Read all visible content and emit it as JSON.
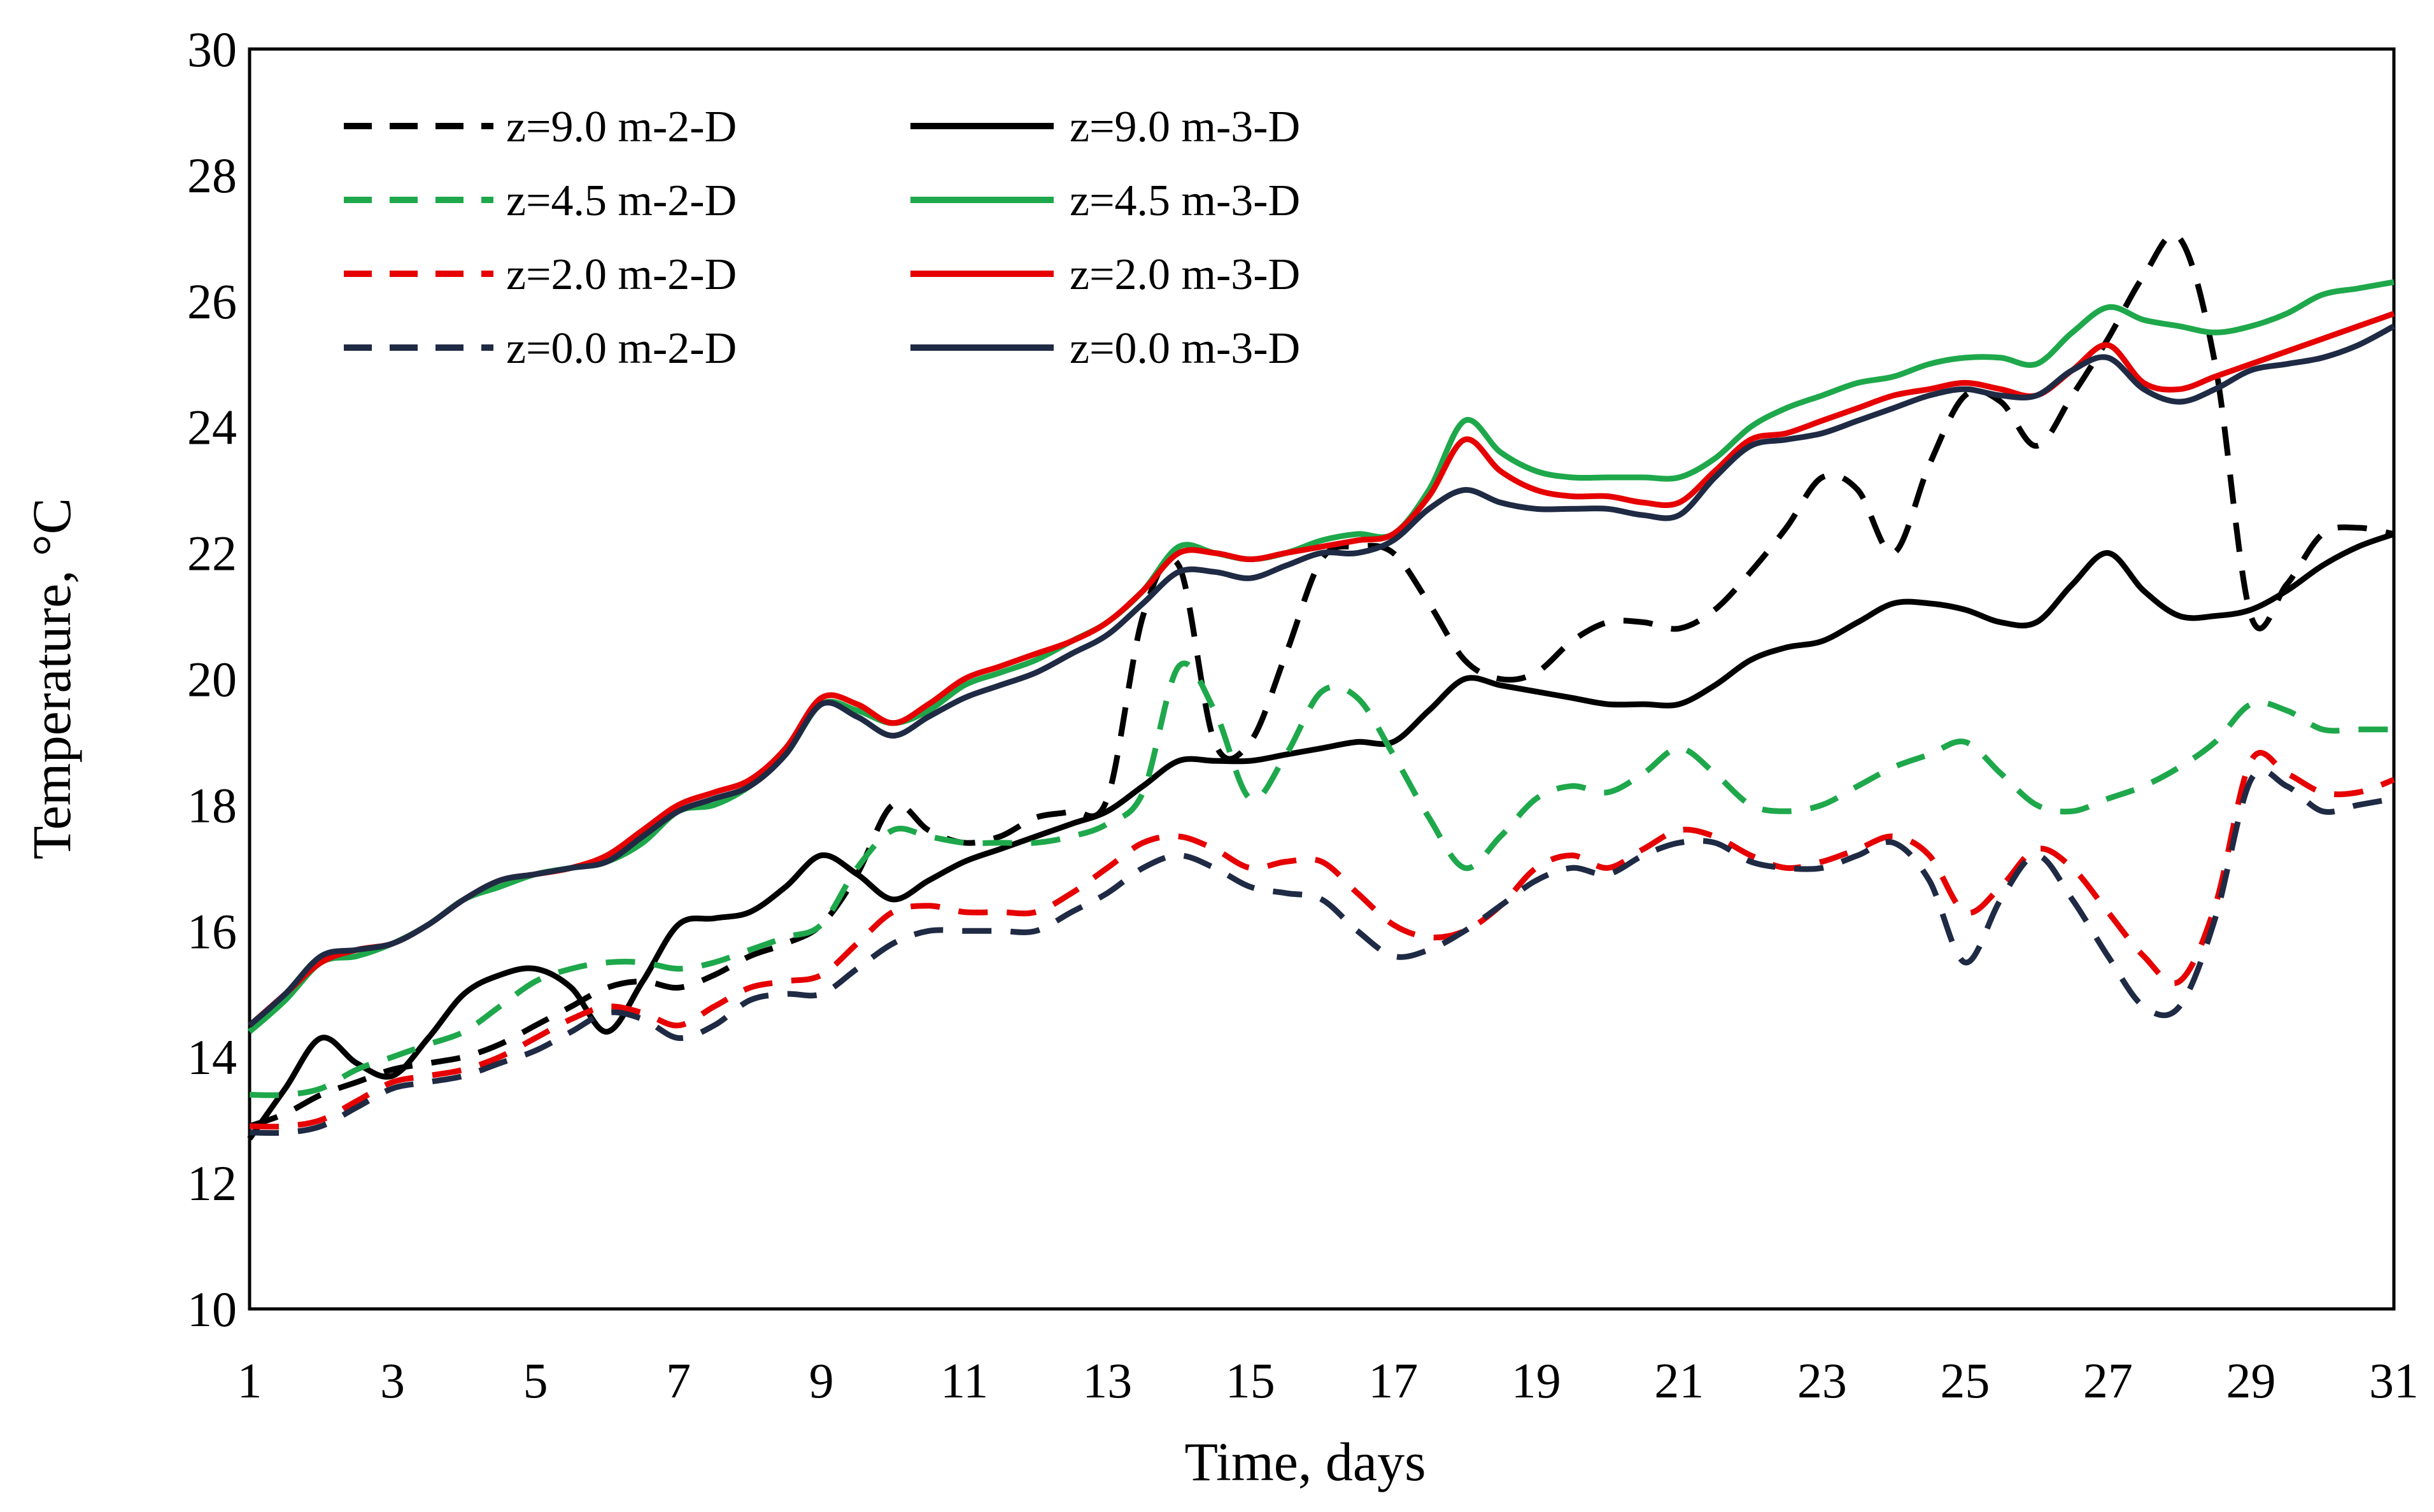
{
  "chart_data": {
    "type": "line",
    "title": "",
    "xlabel": "Time, days",
    "ylabel": "Temperature, °C",
    "xlim": [
      1,
      31
    ],
    "ylim": [
      10,
      30
    ],
    "xticks": [
      "1",
      "3",
      "5",
      "7",
      "9",
      "11",
      "13",
      "15",
      "17",
      "19",
      "21",
      "23",
      "25",
      "27",
      "29",
      "31"
    ],
    "yticks": [
      "10",
      "12",
      "14",
      "16",
      "18",
      "20",
      "22",
      "24",
      "26",
      "28",
      "30"
    ],
    "grid": false,
    "legend_position": "top-left",
    "x": [
      1,
      1.5,
      2,
      2.5,
      3,
      3.5,
      4,
      4.5,
      5,
      5.5,
      6,
      6.5,
      7,
      7.5,
      8,
      8.5,
      9,
      9.5,
      10,
      10.5,
      11,
      11.5,
      12,
      12.5,
      13,
      13.5,
      14,
      14.5,
      15,
      15.5,
      16,
      16.5,
      17,
      17.5,
      18,
      18.5,
      19,
      19.5,
      20,
      20.5,
      21,
      21.5,
      22,
      22.5,
      23,
      23.5,
      24,
      24.5,
      25,
      25.5,
      26,
      26.5,
      27,
      27.5,
      28,
      28.5,
      29,
      29.5,
      30,
      30.5,
      31
    ],
    "series": [
      {
        "name": "z=9.0 m-2-D",
        "color": "#000000",
        "dash": true,
        "values": [
          12.9,
          13.1,
          13.4,
          13.6,
          13.8,
          13.9,
          14.0,
          14.2,
          14.5,
          14.8,
          15.1,
          15.2,
          15.1,
          15.3,
          15.6,
          15.8,
          16.1,
          16.9,
          18.0,
          17.6,
          17.4,
          17.5,
          17.8,
          17.9,
          18.1,
          21.0,
          21.8,
          19.0,
          19.0,
          20.4,
          21.9,
          22.1,
          22.0,
          21.2,
          20.3,
          20.0,
          20.1,
          20.6,
          20.9,
          20.9,
          20.8,
          21.1,
          21.7,
          22.4,
          23.2,
          23.0,
          22.0,
          23.4,
          24.5,
          24.4,
          23.7,
          24.5,
          25.4,
          26.4,
          27.0,
          25.0,
          21.0,
          21.5,
          22.3,
          22.4,
          22.3
        ]
      },
      {
        "name": "z=9.0 m-3-D",
        "color": "#000000",
        "dash": false,
        "values": [
          12.7,
          13.5,
          14.3,
          13.9,
          13.7,
          14.3,
          15.0,
          15.3,
          15.4,
          15.1,
          14.4,
          15.2,
          16.1,
          16.2,
          16.3,
          16.7,
          17.2,
          16.9,
          16.5,
          16.8,
          17.1,
          17.3,
          17.5,
          17.7,
          17.9,
          18.3,
          18.7,
          18.7,
          18.7,
          18.8,
          18.9,
          19.0,
          19.0,
          19.5,
          20.0,
          19.9,
          19.8,
          19.7,
          19.6,
          19.6,
          19.6,
          19.9,
          20.3,
          20.5,
          20.6,
          20.9,
          21.2,
          21.2,
          21.1,
          20.9,
          20.9,
          21.5,
          22.0,
          21.4,
          21.0,
          21.0,
          21.1,
          21.4,
          21.8,
          22.1,
          22.3
        ]
      },
      {
        "name": "z=4.5 m-2-D",
        "color": "#1ea84b",
        "dash": true,
        "values": [
          13.4,
          13.4,
          13.5,
          13.8,
          14.0,
          14.2,
          14.4,
          14.8,
          15.2,
          15.4,
          15.5,
          15.5,
          15.4,
          15.5,
          15.7,
          15.9,
          16.1,
          17.0,
          17.6,
          17.5,
          17.4,
          17.4,
          17.4,
          17.5,
          17.7,
          18.2,
          20.2,
          19.5,
          18.1,
          18.8,
          19.8,
          19.7,
          18.8,
          17.8,
          17.0,
          17.5,
          18.1,
          18.3,
          18.2,
          18.5,
          18.9,
          18.5,
          18.0,
          17.9,
          18.0,
          18.3,
          18.6,
          18.8,
          19.0,
          18.5,
          18.0,
          17.9,
          18.1,
          18.3,
          18.6,
          19.0,
          19.6,
          19.5,
          19.2,
          19.2,
          19.2
        ]
      },
      {
        "name": "z=4.5 m-3-D",
        "color": "#1ea84b",
        "dash": false,
        "values": [
          14.4,
          14.9,
          15.5,
          15.6,
          15.8,
          16.1,
          16.5,
          16.7,
          16.9,
          17.0,
          17.1,
          17.4,
          17.9,
          18.0,
          18.3,
          18.8,
          19.6,
          19.5,
          19.3,
          19.5,
          19.9,
          20.1,
          20.3,
          20.6,
          20.9,
          21.4,
          22.1,
          22.0,
          21.9,
          22.0,
          22.2,
          22.3,
          22.3,
          23.0,
          24.1,
          23.6,
          23.3,
          23.2,
          23.2,
          23.2,
          23.2,
          23.5,
          24.0,
          24.3,
          24.5,
          24.7,
          24.8,
          25.0,
          25.1,
          25.1,
          25.0,
          25.5,
          25.9,
          25.7,
          25.6,
          25.5,
          25.6,
          25.8,
          26.1,
          26.2,
          26.3
        ]
      },
      {
        "name": "z=2.0 m-2-D",
        "color": "#e60000",
        "dash": true,
        "values": [
          12.9,
          12.9,
          13.0,
          13.3,
          13.6,
          13.7,
          13.8,
          14.0,
          14.3,
          14.6,
          14.8,
          14.7,
          14.5,
          14.8,
          15.1,
          15.2,
          15.3,
          15.8,
          16.3,
          16.4,
          16.3,
          16.3,
          16.3,
          16.6,
          17.0,
          17.4,
          17.5,
          17.3,
          17.0,
          17.1,
          17.1,
          16.6,
          16.1,
          15.9,
          16.0,
          16.4,
          17.0,
          17.2,
          17.0,
          17.3,
          17.6,
          17.5,
          17.2,
          17.0,
          17.1,
          17.3,
          17.5,
          17.2,
          16.3,
          16.7,
          17.3,
          17.0,
          16.3,
          15.6,
          15.2,
          16.4,
          18.7,
          18.5,
          18.2,
          18.2,
          18.4
        ]
      },
      {
        "name": "z=2.0 m-3-D",
        "color": "#e60000",
        "dash": false,
        "values": [
          14.5,
          15.0,
          15.5,
          15.7,
          15.8,
          16.1,
          16.5,
          16.8,
          16.9,
          17.0,
          17.2,
          17.6,
          18.0,
          18.2,
          18.4,
          18.9,
          19.7,
          19.6,
          19.3,
          19.6,
          20.0,
          20.2,
          20.4,
          20.6,
          20.9,
          21.4,
          22.0,
          22.0,
          21.9,
          22.0,
          22.1,
          22.2,
          22.3,
          22.9,
          23.8,
          23.3,
          23.0,
          22.9,
          22.9,
          22.8,
          22.8,
          23.3,
          23.8,
          23.9,
          24.1,
          24.3,
          24.5,
          24.6,
          24.7,
          24.6,
          24.5,
          24.9,
          25.3,
          24.7,
          24.6,
          24.8,
          25.0,
          25.2,
          25.4,
          25.6,
          25.8
        ]
      },
      {
        "name": "z=0.0 m-2-D",
        "color": "#1f2a44",
        "dash": true,
        "values": [
          12.8,
          12.8,
          12.9,
          13.2,
          13.5,
          13.6,
          13.7,
          13.9,
          14.1,
          14.4,
          14.7,
          14.6,
          14.3,
          14.5,
          14.9,
          15.0,
          15.0,
          15.4,
          15.8,
          16.0,
          16.0,
          16.0,
          16.0,
          16.3,
          16.6,
          17.0,
          17.2,
          17.0,
          16.7,
          16.6,
          16.5,
          16.0,
          15.6,
          15.7,
          16.0,
          16.4,
          16.8,
          17.0,
          16.9,
          17.2,
          17.4,
          17.4,
          17.1,
          17.0,
          17.0,
          17.2,
          17.4,
          16.8,
          15.5,
          16.5,
          17.2,
          16.5,
          15.6,
          14.8,
          14.8,
          16.2,
          18.4,
          18.3,
          17.9,
          18.0,
          18.1
        ]
      },
      {
        "name": "z=0.0 m-3-D",
        "color": "#1f2a44",
        "dash": false,
        "values": [
          14.5,
          15.0,
          15.6,
          15.7,
          15.8,
          16.1,
          16.5,
          16.8,
          16.9,
          17.0,
          17.1,
          17.5,
          17.9,
          18.1,
          18.3,
          18.8,
          19.6,
          19.4,
          19.1,
          19.4,
          19.7,
          19.9,
          20.1,
          20.4,
          20.7,
          21.2,
          21.7,
          21.7,
          21.6,
          21.8,
          22.0,
          22.0,
          22.2,
          22.7,
          23.0,
          22.8,
          22.7,
          22.7,
          22.7,
          22.6,
          22.6,
          23.2,
          23.7,
          23.8,
          23.9,
          24.1,
          24.3,
          24.5,
          24.6,
          24.5,
          24.5,
          24.9,
          25.1,
          24.6,
          24.4,
          24.6,
          24.9,
          25.0,
          25.1,
          25.3,
          25.6
        ]
      }
    ]
  }
}
